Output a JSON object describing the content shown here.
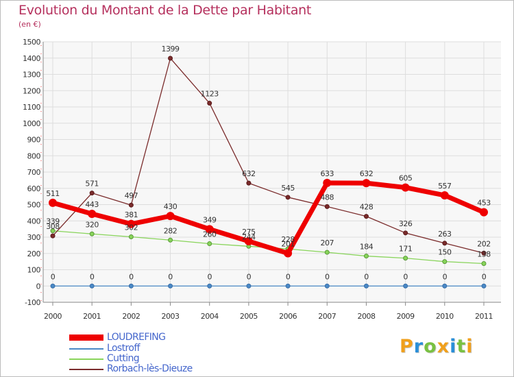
{
  "title": "Evolution du Montant de la Dette par Habitant",
  "subtitle": "(en €)",
  "logo": {
    "letters": [
      "P",
      "r",
      "o",
      "x",
      "i",
      "t",
      "i"
    ],
    "colors": [
      "#f0a01c",
      "#2a8fd8",
      "#79c142",
      "#f0a01c",
      "#2a8fd8",
      "#79c142",
      "#f0a01c"
    ]
  },
  "chart_data": {
    "type": "line",
    "title": "Evolution du Montant de la Dette par Habitant",
    "subtitle": "(en €)",
    "x": [
      "2000",
      "2001",
      "2002",
      "2003",
      "2004",
      "2005",
      "2006",
      "2007",
      "2008",
      "2009",
      "2010",
      "2011"
    ],
    "ylim": [
      -100,
      1500
    ],
    "yticks": [
      -100,
      0,
      100,
      200,
      300,
      400,
      500,
      600,
      700,
      800,
      900,
      1000,
      1100,
      1200,
      1300,
      1400,
      1500
    ],
    "grid": true,
    "legend_position": "bottom-left",
    "series": [
      {
        "name": "LOUDREFING",
        "color": "#ee0000",
        "values": [
          511,
          443,
          381,
          430,
          349,
          275,
          201,
          633,
          632,
          605,
          557,
          453
        ]
      },
      {
        "name": "Lostroff",
        "color": "#4a89c6",
        "values": [
          0,
          0,
          0,
          0,
          0,
          0,
          0,
          0,
          0,
          0,
          0,
          0
        ]
      },
      {
        "name": "Cutting",
        "color": "#88d45a",
        "values": [
          339,
          320,
          302,
          282,
          260,
          244,
          228,
          207,
          184,
          171,
          150,
          138
        ]
      },
      {
        "name": "Rorbach-lès-Dieuze",
        "color": "#7a2b2b",
        "values": [
          308,
          571,
          497,
          1399,
          1123,
          632,
          545,
          488,
          428,
          326,
          263,
          202
        ]
      }
    ]
  }
}
